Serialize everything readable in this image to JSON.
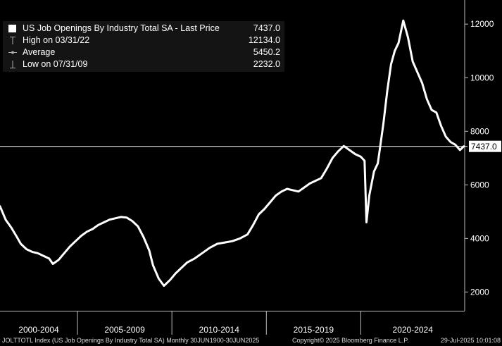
{
  "legend": {
    "series_label": "US Job Openings By Industry Total SA - Last Price",
    "series_value": "7437.0",
    "high_label": "High on 03/31/22",
    "high_value": "12134.0",
    "average_label": "Average",
    "average_value": "5450.2",
    "low_label": "Low on 07/31/09",
    "low_value": "2232.0"
  },
  "last_price_tag": "7437.0",
  "footer": {
    "ticker": "JOLTTOTL Index (US Job Openings By Industry Total SA)  Monthly 30JUN1900-30JUN2025",
    "copyright": "Copyright© 2025 Bloomberg Finance L.P.",
    "timestamp": "29-Jul-2025 10:01:08"
  },
  "colors": {
    "background": "#000000",
    "line": "#ffffff",
    "legend_bg": "#141414"
  },
  "chart_data": {
    "type": "line",
    "title": "US Job Openings By Industry Total SA - Last Price",
    "x_tick_labels": [
      "2000-2004",
      "2005-2009",
      "2010-2014",
      "2015-2019",
      "2020-2024"
    ],
    "x_range": [
      2000.9,
      2025.5
    ],
    "y_ticks": [
      2000,
      4000,
      6000,
      8000,
      10000,
      12000
    ],
    "y_tick_labels": [
      "2000",
      "4000",
      "6000",
      "8000",
      "10000",
      "12000"
    ],
    "y_range": [
      1300,
      12900
    ],
    "y_axis_side": "right",
    "grid": false,
    "last_price_line": 7437,
    "series": [
      {
        "values": [
          [
            2000.9,
            5200
          ],
          [
            2001.2,
            4700
          ],
          [
            2001.5,
            4400
          ],
          [
            2001.8,
            4050
          ],
          [
            2002.0,
            3800
          ],
          [
            2002.3,
            3600
          ],
          [
            2002.6,
            3500
          ],
          [
            2002.9,
            3450
          ],
          [
            2003.2,
            3350
          ],
          [
            2003.5,
            3250
          ],
          [
            2003.7,
            3050
          ],
          [
            2004.0,
            3200
          ],
          [
            2004.3,
            3450
          ],
          [
            2004.6,
            3700
          ],
          [
            2004.9,
            3900
          ],
          [
            2005.2,
            4100
          ],
          [
            2005.5,
            4250
          ],
          [
            2005.8,
            4350
          ],
          [
            2006.1,
            4500
          ],
          [
            2006.4,
            4600
          ],
          [
            2006.7,
            4700
          ],
          [
            2007.0,
            4750
          ],
          [
            2007.3,
            4800
          ],
          [
            2007.6,
            4780
          ],
          [
            2007.9,
            4650
          ],
          [
            2008.2,
            4450
          ],
          [
            2008.5,
            4050
          ],
          [
            2008.8,
            3550
          ],
          [
            2009.0,
            3000
          ],
          [
            2009.3,
            2500
          ],
          [
            2009.58,
            2232
          ],
          [
            2009.9,
            2450
          ],
          [
            2010.2,
            2700
          ],
          [
            2010.5,
            2900
          ],
          [
            2010.8,
            3100
          ],
          [
            2011.2,
            3250
          ],
          [
            2011.6,
            3450
          ],
          [
            2012.0,
            3650
          ],
          [
            2012.4,
            3800
          ],
          [
            2012.8,
            3850
          ],
          [
            2013.2,
            3900
          ],
          [
            2013.6,
            4000
          ],
          [
            2014.0,
            4150
          ],
          [
            2014.3,
            4500
          ],
          [
            2014.6,
            4900
          ],
          [
            2014.9,
            5100
          ],
          [
            2015.2,
            5350
          ],
          [
            2015.5,
            5600
          ],
          [
            2015.8,
            5750
          ],
          [
            2016.1,
            5850
          ],
          [
            2016.4,
            5800
          ],
          [
            2016.7,
            5750
          ],
          [
            2017.0,
            5900
          ],
          [
            2017.3,
            6050
          ],
          [
            2017.6,
            6150
          ],
          [
            2017.9,
            6250
          ],
          [
            2018.2,
            6600
          ],
          [
            2018.5,
            7000
          ],
          [
            2018.8,
            7250
          ],
          [
            2019.1,
            7450
          ],
          [
            2019.4,
            7300
          ],
          [
            2019.7,
            7150
          ],
          [
            2020.0,
            7050
          ],
          [
            2020.2,
            6900
          ],
          [
            2020.3,
            4600
          ],
          [
            2020.45,
            5600
          ],
          [
            2020.7,
            6500
          ],
          [
            2020.9,
            6800
          ],
          [
            2021.0,
            7300
          ],
          [
            2021.2,
            8300
          ],
          [
            2021.4,
            9500
          ],
          [
            2021.6,
            10500
          ],
          [
            2021.8,
            11000
          ],
          [
            2022.0,
            11300
          ],
          [
            2022.25,
            12134
          ],
          [
            2022.5,
            11500
          ],
          [
            2022.75,
            10600
          ],
          [
            2023.0,
            10200
          ],
          [
            2023.25,
            9800
          ],
          [
            2023.5,
            9200
          ],
          [
            2023.75,
            8800
          ],
          [
            2024.0,
            8700
          ],
          [
            2024.25,
            8200
          ],
          [
            2024.5,
            7800
          ],
          [
            2024.75,
            7600
          ],
          [
            2025.0,
            7500
          ],
          [
            2025.25,
            7300
          ],
          [
            2025.45,
            7437
          ]
        ]
      }
    ]
  }
}
